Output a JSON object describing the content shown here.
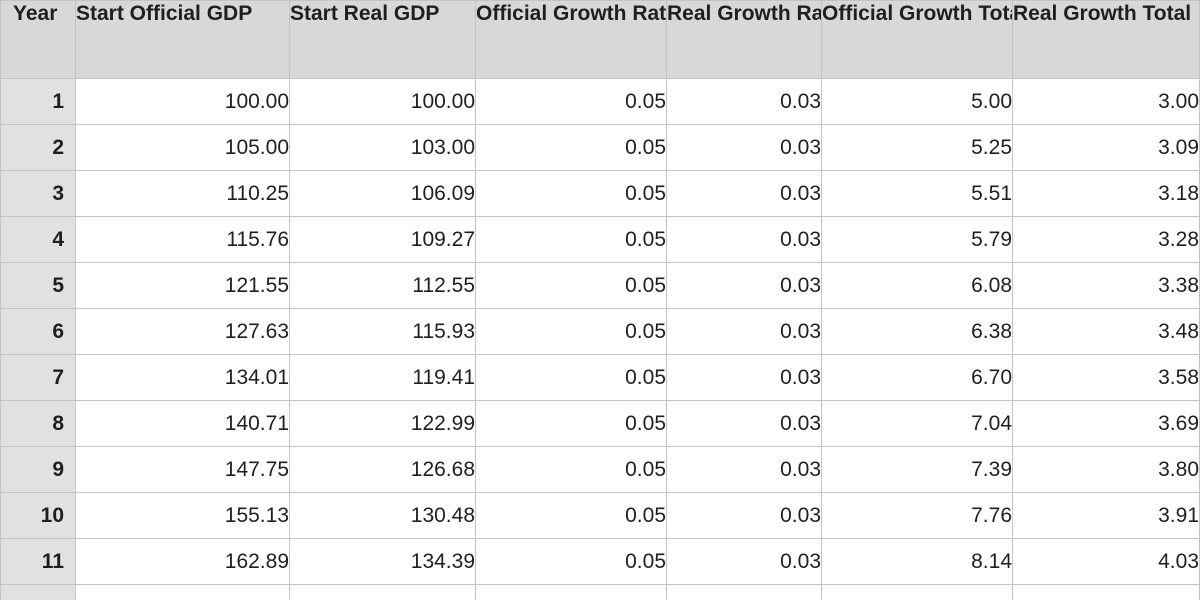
{
  "columns": [
    "Year",
    "Start Official GDP",
    "Start Real GDP",
    "Official Growth Rate",
    "Real Growth Rate",
    "Official Growth Total",
    "Real Growth Total"
  ],
  "rows": [
    [
      "1",
      "100.00",
      "100.00",
      "0.05",
      "0.03",
      "5.00",
      "3.00"
    ],
    [
      "2",
      "105.00",
      "103.00",
      "0.05",
      "0.03",
      "5.25",
      "3.09"
    ],
    [
      "3",
      "110.25",
      "106.09",
      "0.05",
      "0.03",
      "5.51",
      "3.18"
    ],
    [
      "4",
      "115.76",
      "109.27",
      "0.05",
      "0.03",
      "5.79",
      "3.28"
    ],
    [
      "5",
      "121.55",
      "112.55",
      "0.05",
      "0.03",
      "6.08",
      "3.38"
    ],
    [
      "6",
      "127.63",
      "115.93",
      "0.05",
      "0.03",
      "6.38",
      "3.48"
    ],
    [
      "7",
      "134.01",
      "119.41",
      "0.05",
      "0.03",
      "6.70",
      "3.58"
    ],
    [
      "8",
      "140.71",
      "122.99",
      "0.05",
      "0.03",
      "7.04",
      "3.69"
    ],
    [
      "9",
      "147.75",
      "126.68",
      "0.05",
      "0.03",
      "7.39",
      "3.80"
    ],
    [
      "10",
      "155.13",
      "130.48",
      "0.05",
      "0.03",
      "7.76",
      "3.91"
    ],
    [
      "11",
      "162.89",
      "134.39",
      "0.05",
      "0.03",
      "8.14",
      "4.03"
    ]
  ],
  "colors": {
    "header_bg": "#d8d8d8",
    "year_col_bg": "#e1e1e1",
    "grid_line": "#c4c4c4",
    "text": "#1f1f1f"
  }
}
